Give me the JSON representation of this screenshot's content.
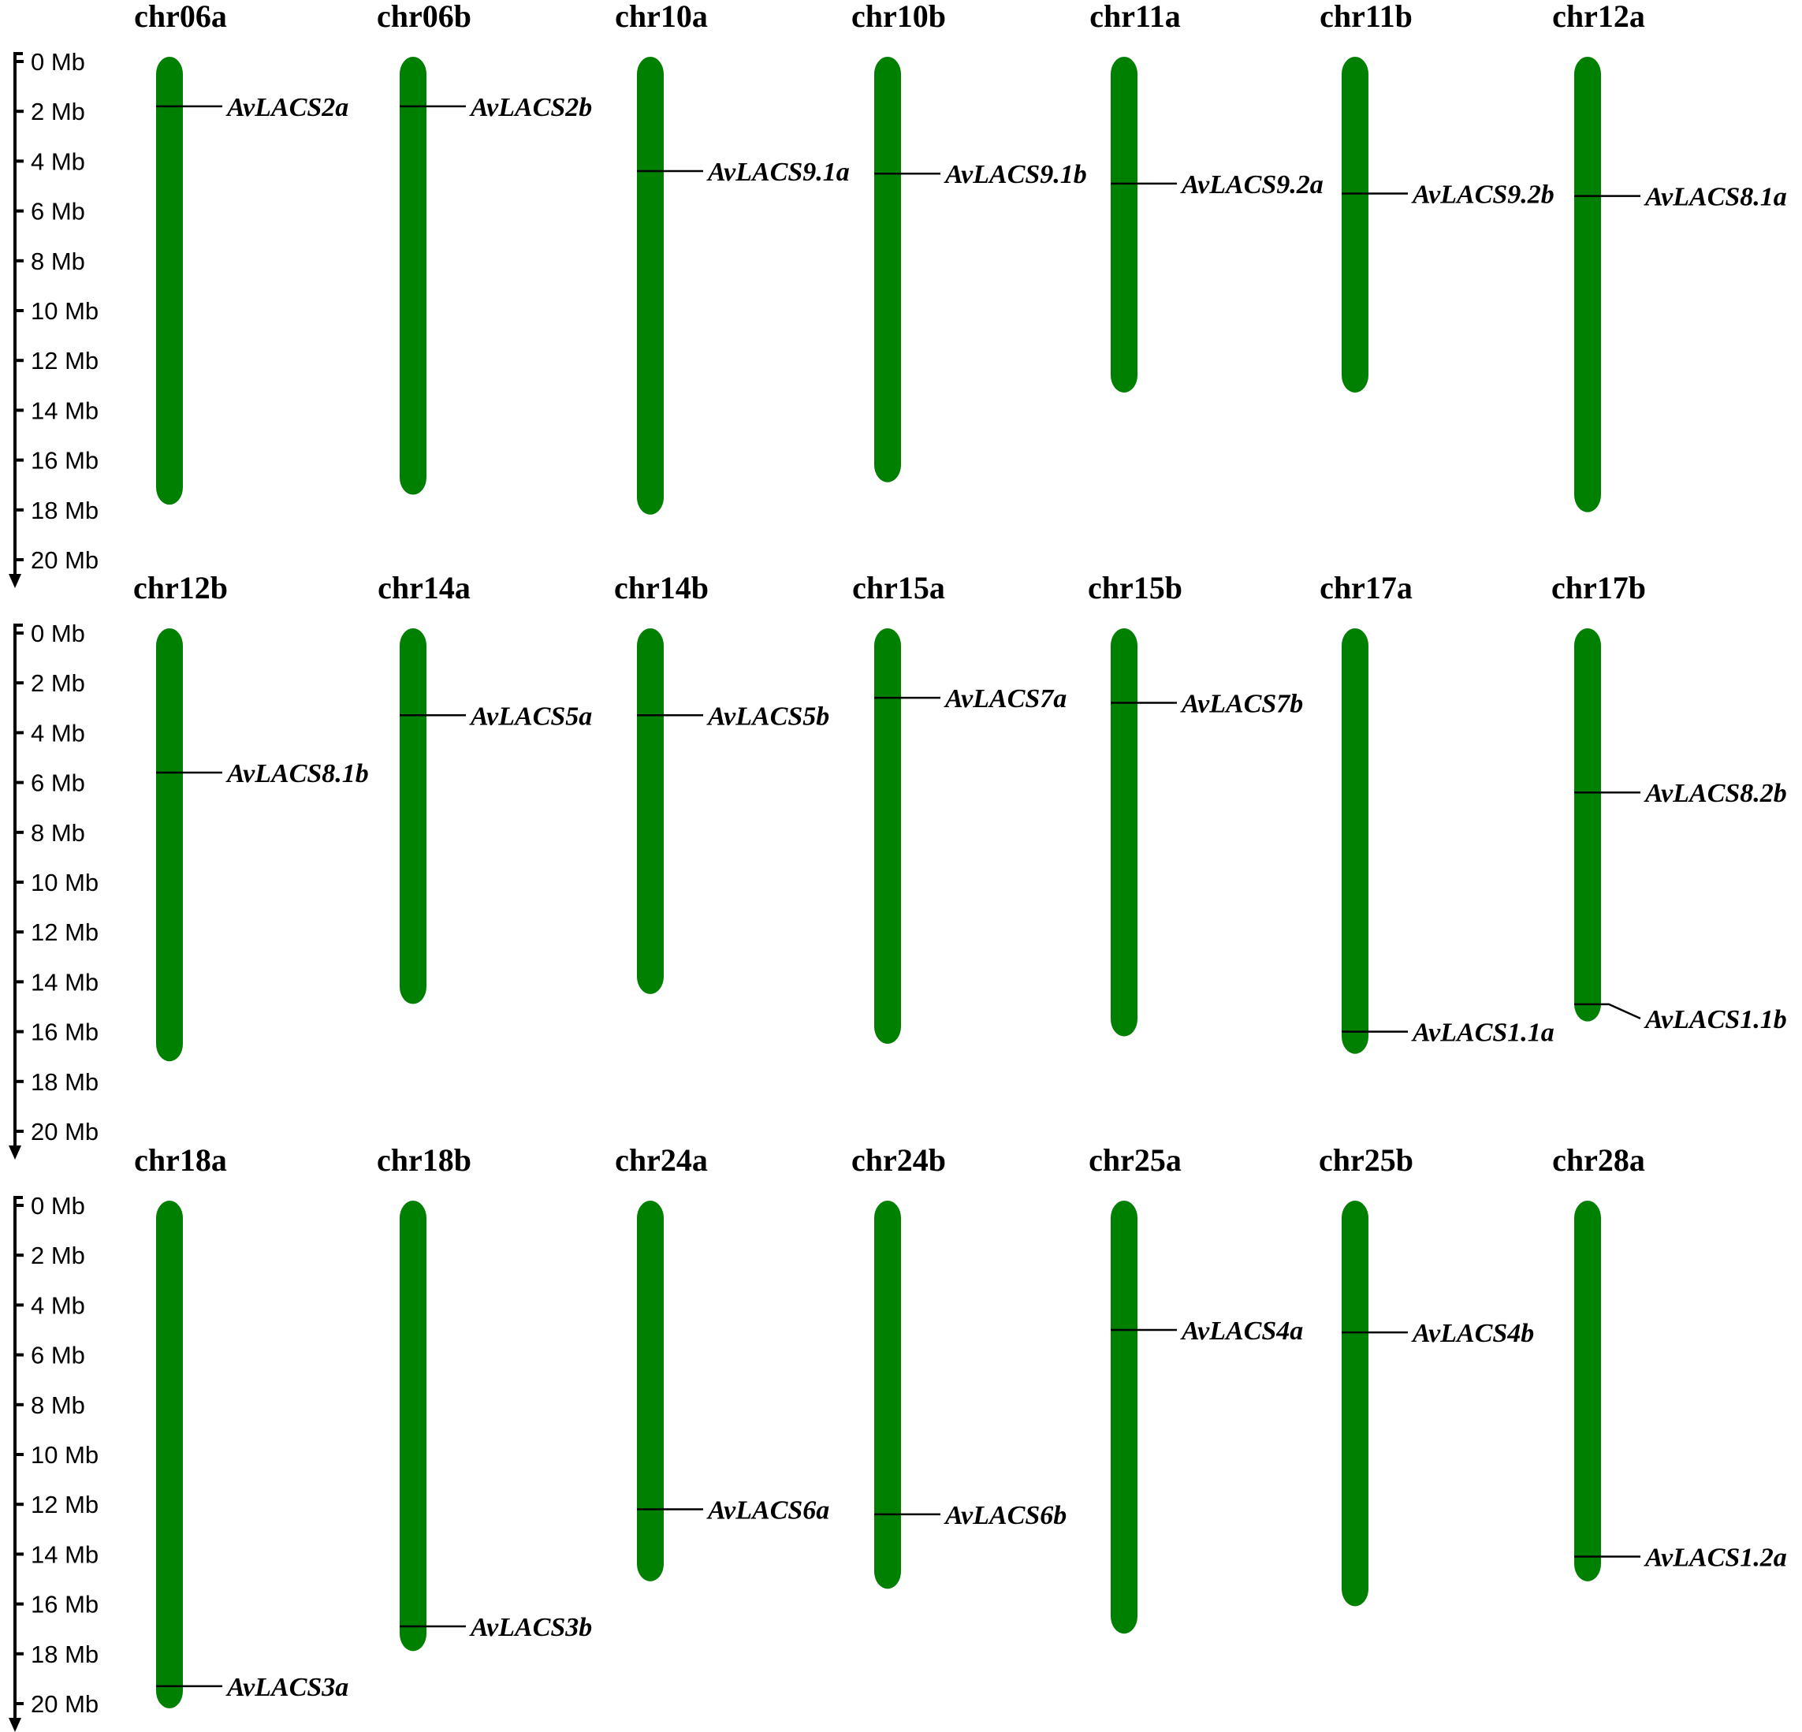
{
  "scale": {
    "tick_labels": [
      "0 Mb",
      "2 Mb",
      "4 Mb",
      "6 Mb",
      "8 Mb",
      "10 Mb",
      "12 Mb",
      "14 Mb",
      "16 Mb",
      "18 Mb",
      "20 Mb"
    ],
    "max_mb": 20
  },
  "colors": {
    "chromosome": "#008000",
    "line": "#000000",
    "text": "#000000"
  },
  "rows": [
    {
      "chromosomes": [
        {
          "name": "chr06a",
          "length_mb": 17.6,
          "genes": [
            {
              "label": "AvLACS2a",
              "pos_mb": 1.8
            }
          ]
        },
        {
          "name": "chr06b",
          "length_mb": 17.2,
          "genes": [
            {
              "label": "AvLACS2b",
              "pos_mb": 1.8
            }
          ]
        },
        {
          "name": "chr10a",
          "length_mb": 18.0,
          "genes": [
            {
              "label": "AvLACS9.1a",
              "pos_mb": 4.4
            }
          ]
        },
        {
          "name": "chr10b",
          "length_mb": 16.7,
          "genes": [
            {
              "label": "AvLACS9.1b",
              "pos_mb": 4.5
            }
          ]
        },
        {
          "name": "chr11a",
          "length_mb": 13.1,
          "genes": [
            {
              "label": "AvLACS9.2a",
              "pos_mb": 4.9
            }
          ]
        },
        {
          "name": "chr11b",
          "length_mb": 13.1,
          "genes": [
            {
              "label": "AvLACS9.2b",
              "pos_mb": 5.3
            }
          ]
        },
        {
          "name": "chr12a",
          "length_mb": 17.9,
          "genes": [
            {
              "label": "AvLACS8.1a",
              "pos_mb": 5.4
            }
          ]
        }
      ]
    },
    {
      "chromosomes": [
        {
          "name": "chr12b",
          "length_mb": 17.0,
          "genes": [
            {
              "label": "AvLACS8.1b",
              "pos_mb": 5.6
            }
          ]
        },
        {
          "name": "chr14a",
          "length_mb": 14.7,
          "genes": [
            {
              "label": "AvLACS5a",
              "pos_mb": 3.3
            }
          ]
        },
        {
          "name": "chr14b",
          "length_mb": 14.3,
          "genes": [
            {
              "label": "AvLACS5b",
              "pos_mb": 3.3
            }
          ]
        },
        {
          "name": "chr15a",
          "length_mb": 16.3,
          "genes": [
            {
              "label": "AvLACS7a",
              "pos_mb": 2.6
            }
          ]
        },
        {
          "name": "chr15b",
          "length_mb": 16.0,
          "genes": [
            {
              "label": "AvLACS7b",
              "pos_mb": 2.8
            }
          ]
        },
        {
          "name": "chr17a",
          "length_mb": 16.7,
          "genes": [
            {
              "label": "AvLACS1.1a",
              "pos_mb": 16.0
            }
          ]
        },
        {
          "name": "chr17b",
          "length_mb": 15.4,
          "genes": [
            {
              "label": "AvLACS8.2b",
              "pos_mb": 6.4
            },
            {
              "label": "AvLACS1.1b",
              "pos_mb": 14.9
            }
          ]
        }
      ]
    },
    {
      "chromosomes": [
        {
          "name": "chr18a",
          "length_mb": 20.0,
          "genes": [
            {
              "label": "AvLACS3a",
              "pos_mb": 19.3
            }
          ]
        },
        {
          "name": "chr18b",
          "length_mb": 17.7,
          "genes": [
            {
              "label": "AvLACS3b",
              "pos_mb": 16.9
            }
          ]
        },
        {
          "name": "chr24a",
          "length_mb": 14.9,
          "genes": [
            {
              "label": "AvLACS6a",
              "pos_mb": 12.2
            }
          ]
        },
        {
          "name": "chr24b",
          "length_mb": 15.2,
          "genes": [
            {
              "label": "AvLACS6b",
              "pos_mb": 12.4
            }
          ]
        },
        {
          "name": "chr25a",
          "length_mb": 17.0,
          "genes": [
            {
              "label": "AvLACS4a",
              "pos_mb": 5.0
            }
          ]
        },
        {
          "name": "chr25b",
          "length_mb": 15.9,
          "genes": [
            {
              "label": "AvLACS4b",
              "pos_mb": 5.1
            }
          ]
        },
        {
          "name": "chr28a",
          "length_mb": 14.9,
          "genes": [
            {
              "label": "AvLACS1.2a",
              "pos_mb": 14.1
            }
          ]
        }
      ]
    }
  ]
}
